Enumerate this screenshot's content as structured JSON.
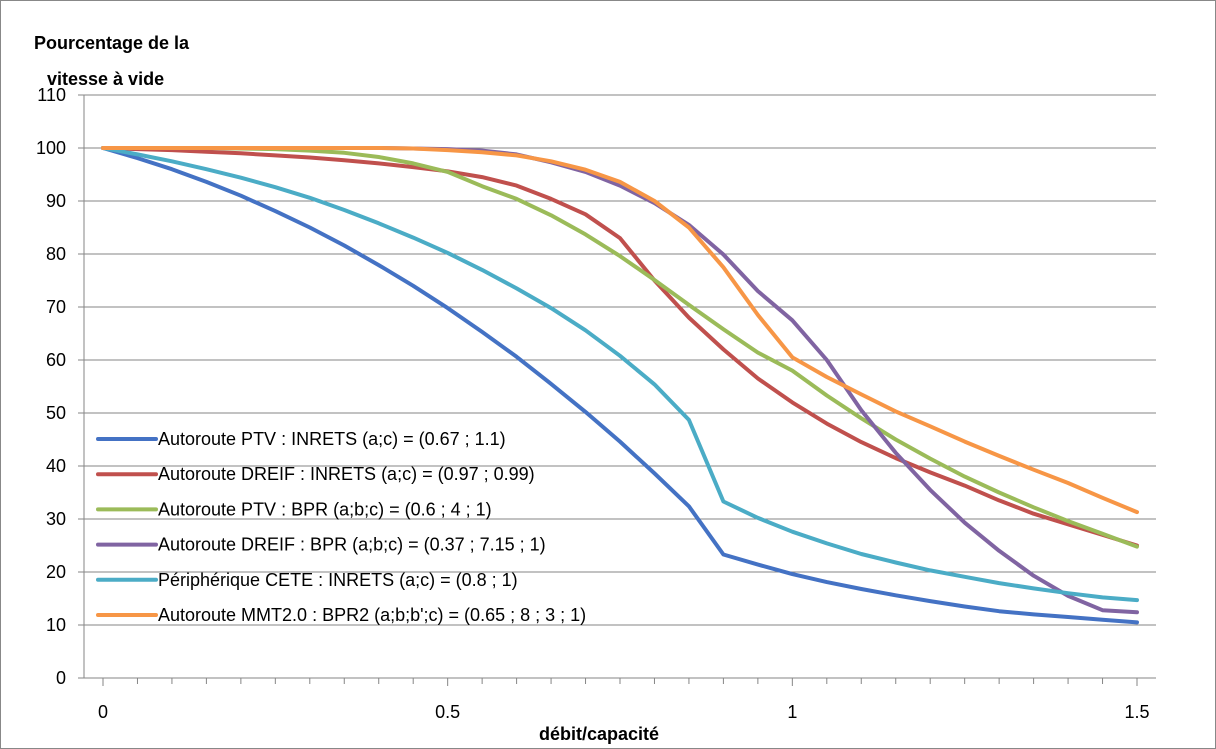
{
  "chart_data": {
    "type": "line",
    "title": "",
    "ylabel_lines": [
      "Pourcentage de la",
      "vitesse à vide"
    ],
    "xlabel": "débit/capacité",
    "xlim": [
      0,
      1.5
    ],
    "ylim": [
      0,
      110
    ],
    "x_ticks": [
      0,
      0.5,
      1,
      1.5
    ],
    "x_tick_labels": [
      "0",
      "0.5",
      "1",
      "1.5"
    ],
    "y_ticks": [
      0,
      10,
      20,
      30,
      40,
      50,
      60,
      70,
      80,
      90,
      100,
      110
    ],
    "y_tick_labels": [
      "0",
      "10",
      "20",
      "30",
      "40",
      "50",
      "60",
      "70",
      "80",
      "90",
      "100",
      "110"
    ],
    "grid": "horizontal",
    "legend_position": "bottom-left",
    "x": [
      0,
      0.05,
      0.1,
      0.15,
      0.2,
      0.25,
      0.3,
      0.35,
      0.4,
      0.45,
      0.5,
      0.55,
      0.6,
      0.65,
      0.7,
      0.75,
      0.8,
      0.85,
      0.9,
      0.95,
      1.0,
      1.05,
      1.1,
      1.15,
      1.2,
      1.25,
      1.3,
      1.35,
      1.4,
      1.45,
      1.5
    ],
    "series": [
      {
        "name": "Autoroute PTV : INRETS (a;c) = (0.67 ; 1.1)",
        "color": "#4472C4",
        "values": [
          100,
          98.1,
          96.0,
          93.6,
          91.0,
          88.1,
          85.0,
          81.6,
          77.9,
          74.0,
          69.8,
          65.3,
          60.6,
          55.5,
          50.2,
          44.6,
          38.6,
          32.4,
          23.3,
          21.4,
          19.6,
          18.1,
          16.8,
          15.6,
          14.5,
          13.5,
          12.6,
          12.0,
          11.5,
          11.0,
          10.5
        ]
      },
      {
        "name": "Autoroute DREIF : INRETS (a;c) = (0.97 ; 0.99)",
        "color": "#C0504D",
        "values": [
          100,
          99.8,
          99.6,
          99.3,
          99.0,
          98.6,
          98.2,
          97.7,
          97.1,
          96.4,
          95.6,
          94.5,
          92.9,
          90.4,
          87.5,
          83.0,
          75.0,
          68.0,
          62.0,
          56.5,
          52.0,
          48.0,
          44.5,
          41.5,
          38.8,
          36.3,
          33.5,
          31.0,
          29.0,
          27.0,
          25.0
        ]
      },
      {
        "name": "Autoroute PTV : BPR (a;b;c) = (0.6 ; 4 ; 1)",
        "color": "#9BBB59",
        "values": [
          100,
          100.0,
          100.0,
          100.0,
          99.9,
          99.8,
          99.5,
          99.1,
          98.3,
          97.1,
          95.5,
          92.8,
          90.4,
          87.3,
          83.7,
          79.6,
          75.1,
          70.4,
          65.8,
          61.4,
          58.0,
          53.3,
          49.0,
          45.0,
          41.4,
          38.0,
          35.0,
          32.2,
          29.6,
          27.2,
          24.8
        ]
      },
      {
        "name": "Autoroute DREIF : BPR (a;b;c) = (0.37 ; 7.15 ; 1)",
        "color": "#8064A2",
        "values": [
          100,
          100,
          100,
          100,
          100,
          100,
          100,
          100,
          100,
          99.9,
          99.8,
          99.5,
          98.8,
          97.3,
          95.5,
          92.9,
          89.6,
          85.5,
          79.9,
          73.0,
          67.5,
          60.0,
          50.5,
          42.5,
          35.5,
          29.3,
          24.0,
          19.3,
          15.5,
          12.8,
          12.4
        ]
      },
      {
        "name": "Périphérique CETE : INRETS (a;c) = (0.8 ; 1)",
        "color": "#4BACC6",
        "values": [
          100,
          98.8,
          97.5,
          96.0,
          94.4,
          92.6,
          90.6,
          88.3,
          85.8,
          83.1,
          80.2,
          77.0,
          73.5,
          69.8,
          65.6,
          60.8,
          55.4,
          48.7,
          33.3,
          30.2,
          27.6,
          25.4,
          23.4,
          21.8,
          20.3,
          19.1,
          17.9,
          16.9,
          16.0,
          15.2,
          14.7
        ]
      },
      {
        "name": "Autoroute MMT2.0 : BPR2 (a;b;b';c) = (0.65 ; 8 ; 3 ; 1)",
        "color": "#F79646",
        "values": [
          100,
          100,
          100,
          100,
          100,
          100,
          100,
          100,
          100,
          99.9,
          99.6,
          99.2,
          98.6,
          97.5,
          95.9,
          93.6,
          90.0,
          85.0,
          77.5,
          68.5,
          60.5,
          56.8,
          53.5,
          50.3,
          47.5,
          44.6,
          41.9,
          39.3,
          36.8,
          34.0,
          31.3
        ]
      }
    ]
  }
}
